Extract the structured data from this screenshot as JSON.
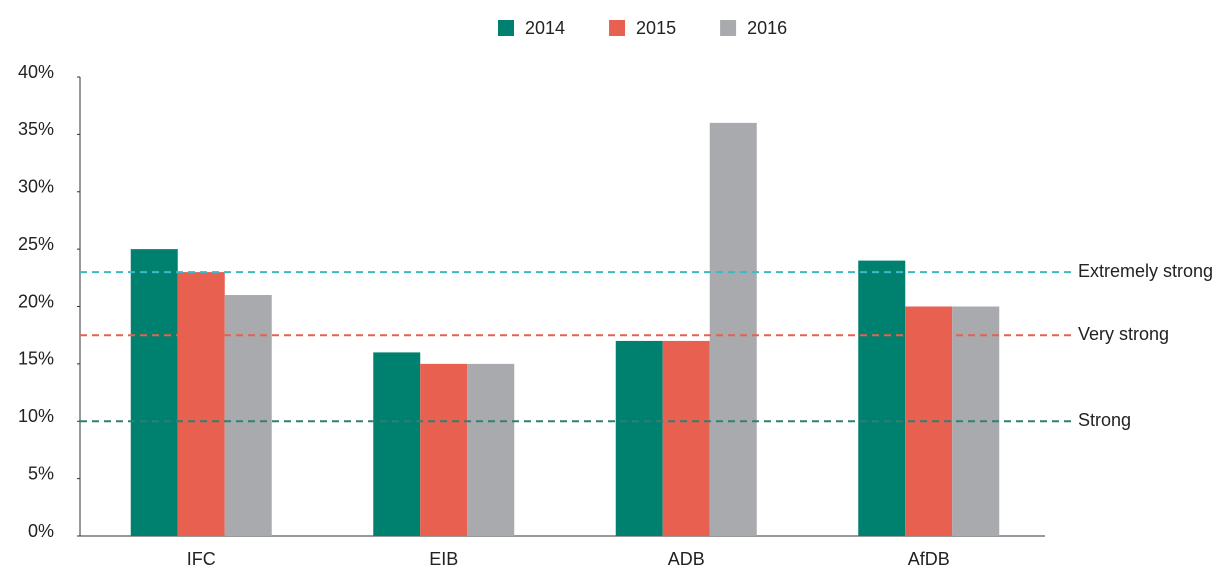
{
  "chart_data": {
    "type": "bar",
    "categories": [
      "IFC",
      "EIB",
      "ADB",
      "AfDB"
    ],
    "series": [
      {
        "name": "2014",
        "color": "#00806f",
        "values": [
          25,
          16,
          17,
          24
        ]
      },
      {
        "name": "2015",
        "color": "#e8604f",
        "values": [
          23,
          15,
          17,
          20
        ]
      },
      {
        "name": "2016",
        "color": "#a8aaad",
        "values": [
          21,
          15,
          36,
          20
        ]
      }
    ],
    "ylim": [
      0,
      40
    ],
    "yticks": [
      {
        "value": 0,
        "label": "0%"
      },
      {
        "value": 5,
        "label": "5%"
      },
      {
        "value": 10,
        "label": "10%"
      },
      {
        "value": 15,
        "label": "15%"
      },
      {
        "value": 20,
        "label": "20%"
      },
      {
        "value": 25,
        "label": "25%"
      },
      {
        "value": 30,
        "label": "30%"
      },
      {
        "value": 35,
        "label": "35%"
      },
      {
        "value": 40,
        "label": "40%"
      }
    ],
    "reference_lines": [
      {
        "label": "Extremely strong",
        "value": 23,
        "color": "#3fb8c4"
      },
      {
        "label": "Very strong",
        "value": 17.5,
        "color": "#e8604f"
      },
      {
        "label": "Strong",
        "value": 10,
        "color": "#2e7f74"
      }
    ],
    "legend": "top"
  }
}
